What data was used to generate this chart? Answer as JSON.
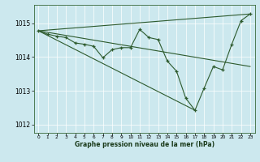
{
  "xlabel": "Graphe pression niveau de la mer (hPa)",
  "background_color": "#cce8ee",
  "line_color": "#2d5a2d",
  "xlim": [
    -0.5,
    23.5
  ],
  "ylim": [
    1011.75,
    1015.55
  ],
  "yticks": [
    1012,
    1013,
    1014,
    1015
  ],
  "xticks": [
    0,
    1,
    2,
    3,
    4,
    5,
    6,
    7,
    8,
    9,
    10,
    11,
    12,
    13,
    14,
    15,
    16,
    17,
    18,
    19,
    20,
    21,
    22,
    23
  ],
  "series1_x": [
    0,
    1,
    2,
    3,
    4,
    5,
    6,
    7,
    8,
    9,
    10,
    11,
    12,
    13,
    14,
    15,
    16,
    17,
    18,
    19,
    20,
    21,
    22,
    23
  ],
  "series1_y": [
    1014.78,
    1014.68,
    1014.62,
    1014.58,
    1014.42,
    1014.38,
    1014.32,
    1013.98,
    1014.22,
    1014.28,
    1014.28,
    1014.82,
    1014.58,
    1014.52,
    1013.88,
    1013.58,
    1012.78,
    1012.42,
    1013.08,
    1013.72,
    1013.62,
    1014.38,
    1015.08,
    1015.28
  ],
  "series2_x": [
    0,
    23
  ],
  "series2_y": [
    1014.78,
    1015.28
  ],
  "series3_x": [
    0,
    23
  ],
  "series3_y": [
    1014.78,
    1013.72
  ],
  "series4_x": [
    0,
    17
  ],
  "series4_y": [
    1014.78,
    1012.42
  ]
}
